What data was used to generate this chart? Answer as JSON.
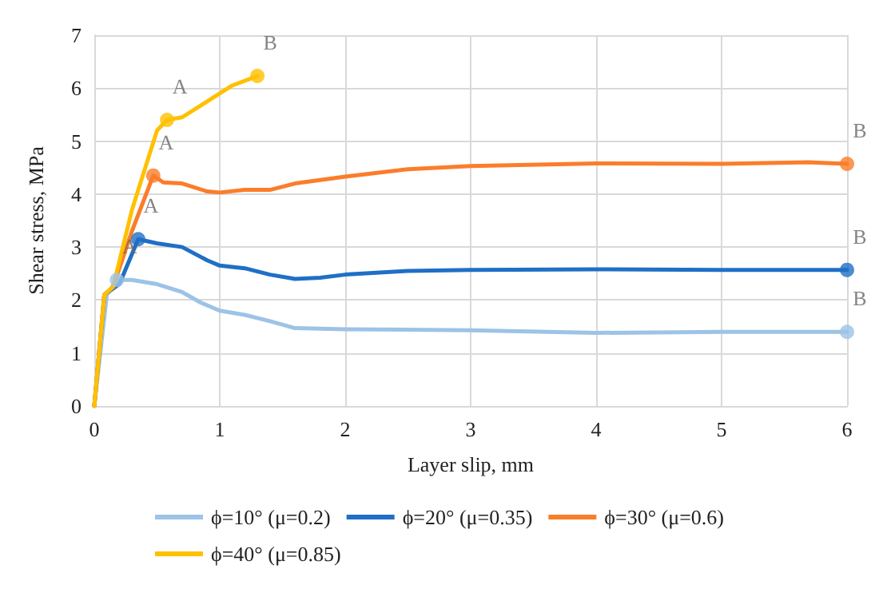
{
  "chart_data": {
    "type": "line",
    "xlabel": "Layer slip, mm",
    "ylabel": "Shear stress, MPa",
    "xlim": [
      0,
      6
    ],
    "xticks": [
      0,
      1,
      2,
      3,
      4,
      5,
      6
    ],
    "ylim": [
      0,
      7
    ],
    "yticks": [
      0,
      1,
      2,
      3,
      4,
      5,
      6,
      7
    ],
    "grid": true,
    "legend": "bottom",
    "line_style": "solid",
    "marker": "none",
    "series": [
      {
        "name": "ϕ=10° (μ=0.2)",
        "color": "#9dc3e6",
        "x": [
          0,
          0.1,
          0.18,
          0.3,
          0.5,
          0.7,
          0.85,
          1.0,
          1.2,
          1.4,
          1.6,
          2,
          3,
          4,
          5,
          6
        ],
        "values": [
          0,
          2.1,
          2.38,
          2.38,
          2.3,
          2.15,
          1.95,
          1.8,
          1.72,
          1.6,
          1.47,
          1.45,
          1.43,
          1.38,
          1.4,
          1.4
        ]
      },
      {
        "name": "ϕ=20° (μ=0.35)",
        "color": "#1f6fc5",
        "x": [
          0,
          0.08,
          0.2,
          0.35,
          0.5,
          0.7,
          0.9,
          1.0,
          1.2,
          1.4,
          1.6,
          1.8,
          2,
          2.5,
          3,
          4,
          5,
          6
        ],
        "values": [
          0,
          2.1,
          2.3,
          3.15,
          3.07,
          3.0,
          2.75,
          2.65,
          2.6,
          2.48,
          2.4,
          2.42,
          2.48,
          2.55,
          2.57,
          2.58,
          2.57,
          2.57
        ]
      },
      {
        "name": "ϕ=30° (μ=0.6)",
        "color": "#fb7d2a",
        "x": [
          0,
          0.08,
          0.15,
          0.3,
          0.47,
          0.55,
          0.7,
          0.9,
          1.0,
          1.2,
          1.4,
          1.6,
          2,
          2.5,
          3,
          4,
          5,
          5.7,
          6
        ],
        "values": [
          0,
          2.1,
          2.25,
          3.3,
          4.35,
          4.22,
          4.2,
          4.05,
          4.03,
          4.08,
          4.08,
          4.2,
          4.33,
          4.47,
          4.53,
          4.58,
          4.57,
          4.6,
          4.57
        ]
      },
      {
        "name": "ϕ=40° (μ=0.85)",
        "color": "#ffc000",
        "x": [
          0,
          0.08,
          0.15,
          0.3,
          0.5,
          0.58,
          0.7,
          0.9,
          1.0,
          1.1,
          1.3
        ],
        "values": [
          0,
          2.1,
          2.25,
          3.7,
          5.2,
          5.4,
          5.45,
          5.75,
          5.9,
          6.05,
          6.23
        ]
      }
    ],
    "annotations": [
      {
        "text": "A",
        "x": 0.18,
        "y": 2.38
      },
      {
        "text": "A",
        "x": 0.35,
        "y": 3.15
      },
      {
        "text": "A",
        "x": 0.47,
        "y": 4.35
      },
      {
        "text": "A",
        "x": 0.58,
        "y": 5.4
      },
      {
        "text": "B",
        "x": 6,
        "y": 1.4
      },
      {
        "text": "B",
        "x": 6,
        "y": 2.57
      },
      {
        "text": "B",
        "x": 6,
        "y": 4.57
      },
      {
        "text": "B",
        "x": 1.3,
        "y": 6.23
      }
    ]
  }
}
